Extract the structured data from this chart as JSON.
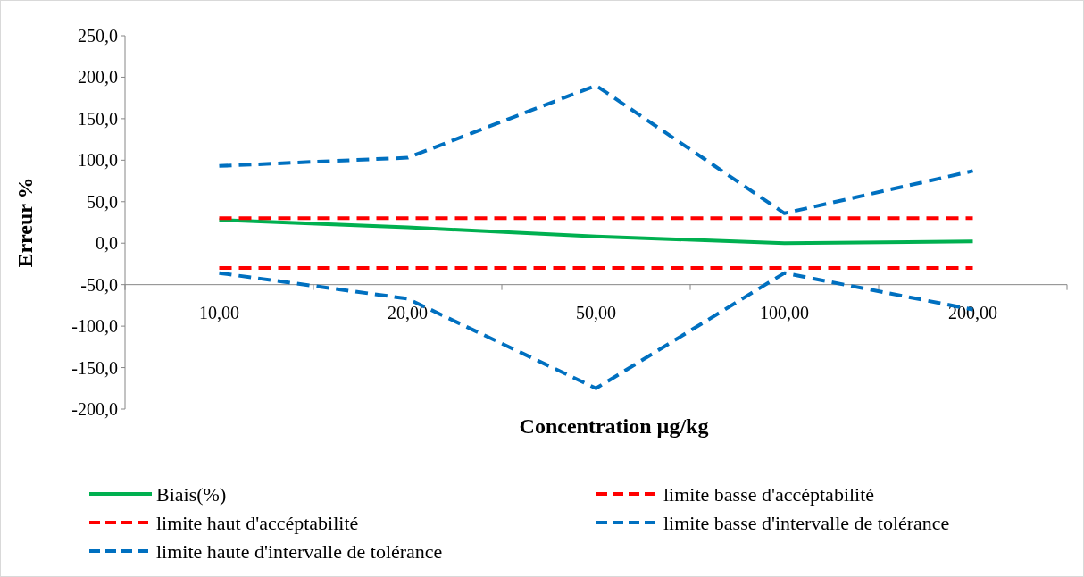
{
  "chart_data": {
    "type": "line",
    "xlabel": "Concentration µg/kg",
    "ylabel": "Erreur %",
    "categories": [
      "10,00",
      "20,00",
      "50,00",
      "100,00",
      "200,00"
    ],
    "series": [
      {
        "name": "Biais(%)",
        "color": "#00b050",
        "values": [
          28,
          19,
          8,
          0,
          2
        ],
        "line_style": "solid"
      },
      {
        "name": "limite basse d'accéptabilité",
        "color": "#ff0000",
        "values": [
          -30,
          -30,
          -30,
          -30,
          -30
        ],
        "line_style": "dashed"
      },
      {
        "name": "limite haut d'accéptabilité",
        "color": "#ff0000",
        "values": [
          30,
          30,
          30,
          30,
          30
        ],
        "line_style": "dashed"
      },
      {
        "name": "limite basse d'intervalle de tolérance",
        "color": "#0070c0",
        "values": [
          -36,
          -67,
          -175,
          -36,
          -80
        ],
        "line_style": "dashed"
      },
      {
        "name": "limite haute d'intervalle de tolérance",
        "color": "#0070c0",
        "values": [
          93,
          103,
          190,
          36,
          87
        ],
        "line_style": "dashed"
      }
    ],
    "ylim": [
      -200,
      250
    ],
    "yticks": [
      {
        "value": -200,
        "label": "-200,0"
      },
      {
        "value": -150,
        "label": "-150,0"
      },
      {
        "value": -100,
        "label": "-100,0"
      },
      {
        "value": -50,
        "label": "-50,0"
      },
      {
        "value": 0,
        "label": "0,0"
      },
      {
        "value": 50,
        "label": "50,0"
      },
      {
        "value": 100,
        "label": "100,0"
      },
      {
        "value": 150,
        "label": "150,0"
      },
      {
        "value": 200,
        "label": "200,0"
      },
      {
        "value": 250,
        "label": "250,0"
      }
    ],
    "grid": false,
    "legend": "bottom",
    "marker": "none"
  }
}
